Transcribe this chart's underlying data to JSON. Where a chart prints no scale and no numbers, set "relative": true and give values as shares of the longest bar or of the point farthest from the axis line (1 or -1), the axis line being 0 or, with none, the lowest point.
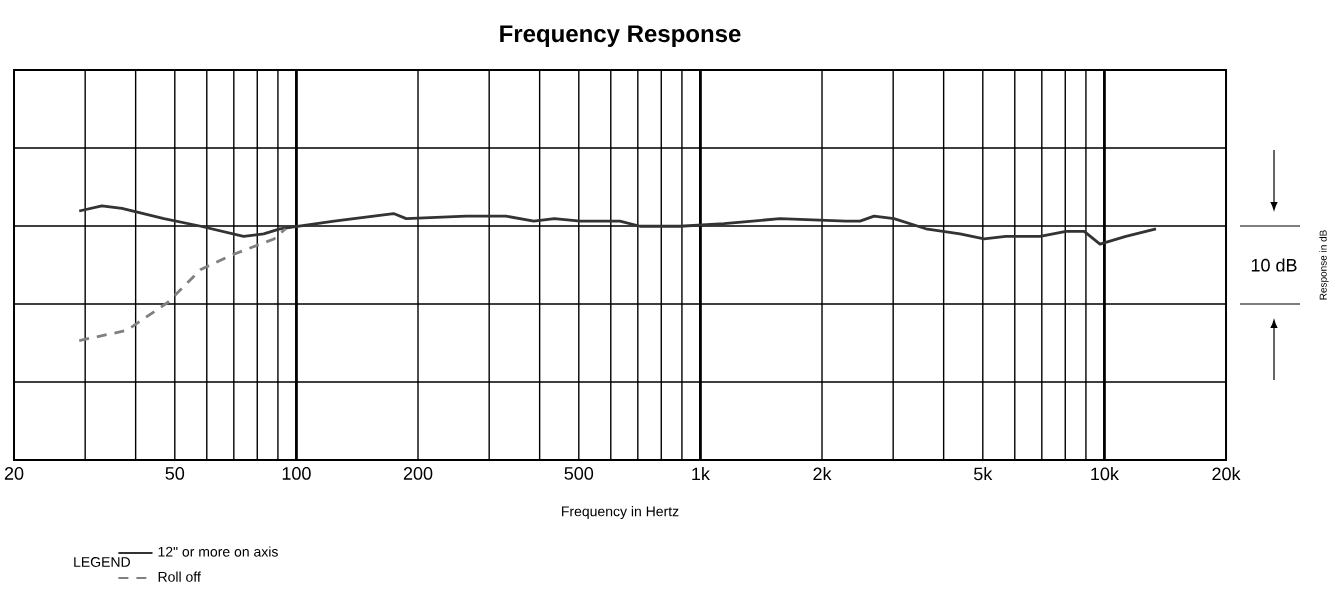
{
  "chart_data": {
    "type": "line",
    "title": "Frequency Response",
    "xlabel": "Frequency in Hertz",
    "legend_title": "LEGEND",
    "annotations": [
      "10 dB",
      "Response in dB"
    ],
    "relative": true,
    "log": "x",
    "grid": true,
    "legend": "bottom left",
    "xlim": [
      20,
      20000
    ],
    "xticks": [
      20,
      50,
      100,
      200,
      500,
      {
        "value": 1000,
        "label": "1k"
      },
      {
        "value": 2000,
        "label": "2k"
      },
      {
        "value": 5000,
        "label": "5k"
      },
      {
        "value": 10000,
        "label": "10k"
      },
      {
        "value": 20000,
        "label": "20k"
      }
    ],
    "series": [
      {
        "name": "12\" or more on axis",
        "color": "#333333",
        "line_style": "solid",
        "x": [
          29,
          33,
          37,
          47,
          58,
          74,
          83,
          91,
          124,
          174,
          187,
          263,
          330,
          387,
          435,
          504,
          632,
          709,
          891,
          1144,
          1574,
          2292,
          2484,
          2690,
          3014,
          3616,
          4392,
          5036,
          5700,
          6934,
          8036,
          8912,
          9750,
          11300,
          13420
        ],
        "values": [
          0.98,
          1.0,
          0.99,
          0.95,
          0.92,
          0.88,
          0.89,
          0.91,
          0.94,
          0.97,
          0.95,
          0.96,
          0.96,
          0.94,
          0.95,
          0.94,
          0.94,
          0.92,
          0.92,
          0.93,
          0.95,
          0.94,
          0.94,
          0.96,
          0.95,
          0.91,
          0.89,
          0.87,
          0.88,
          0.88,
          0.9,
          0.9,
          0.85,
          0.88,
          0.91
        ]
      },
      {
        "name": "Roll off",
        "color": "#808080",
        "line_style": "dashed",
        "x": [
          29,
          38,
          48,
          58,
          70,
          88,
          94
        ],
        "values": [
          0.47,
          0.51,
          0.62,
          0.75,
          0.81,
          0.87,
          0.91
        ]
      }
    ]
  }
}
